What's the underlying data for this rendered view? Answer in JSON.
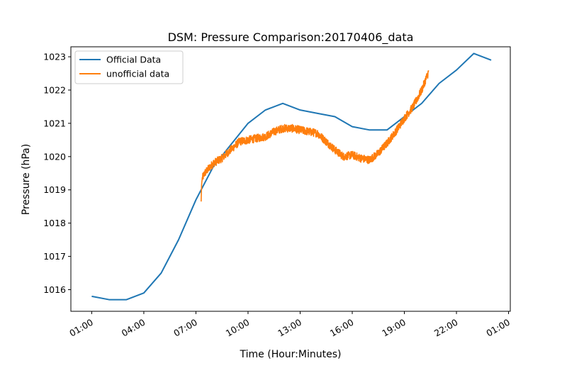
{
  "chart_data": {
    "type": "line",
    "title": "DSM: Pressure Comparison:20170406_data",
    "xlabel": "Time (Hour:Minutes)",
    "ylabel": "Pressure (hPa)",
    "x_tick_labels": [
      "01:00",
      "04:00",
      "07:00",
      "10:00",
      "13:00",
      "16:00",
      "19:00",
      "22:00",
      "01:00"
    ],
    "x_ticks_hours": [
      1,
      4,
      7,
      10,
      13,
      16,
      19,
      22,
      25
    ],
    "xlim_hours": [
      -0.2,
      25.1
    ],
    "y_ticks": [
      1016,
      1017,
      1018,
      1019,
      1020,
      1021,
      1022,
      1023
    ],
    "ylim": [
      1015.35,
      1023.3
    ],
    "grid": false,
    "legend_position": "top-left",
    "series": [
      {
        "name": "Official Data",
        "color": "#1f77b4",
        "x_hours": [
          1,
          2,
          3,
          4,
          5,
          6,
          7,
          8,
          9,
          10,
          11,
          12,
          13,
          14,
          15,
          16,
          17,
          18,
          19,
          20,
          21,
          22,
          23,
          24
        ],
        "values": [
          1015.8,
          1015.7,
          1015.7,
          1015.9,
          1016.5,
          1017.5,
          1018.7,
          1019.7,
          1020.35,
          1021.0,
          1021.4,
          1021.6,
          1021.4,
          1021.3,
          1021.2,
          1020.9,
          1020.8,
          1020.8,
          1021.2,
          1021.6,
          1022.2,
          1022.6,
          1023.1,
          1022.9
        ]
      },
      {
        "name": "unofficial data",
        "color": "#ff7f0e",
        "x_hours": [
          7.3,
          7.33,
          7.37,
          7.5,
          7.75,
          8.0,
          8.5,
          9.0,
          9.5,
          10.0,
          10.5,
          11.0,
          11.5,
          12.0,
          12.5,
          13.0,
          13.5,
          14.0,
          14.5,
          15.0,
          15.5,
          16.0,
          16.5,
          17.0,
          17.5,
          18.0,
          18.5,
          19.0,
          19.5,
          20.0,
          20.4
        ],
        "values": [
          1018.65,
          1019.2,
          1019.35,
          1019.5,
          1019.65,
          1019.8,
          1019.95,
          1020.2,
          1020.45,
          1020.5,
          1020.55,
          1020.6,
          1020.75,
          1020.85,
          1020.85,
          1020.8,
          1020.75,
          1020.7,
          1020.45,
          1020.2,
          1020.0,
          1020.05,
          1019.95,
          1019.9,
          1020.1,
          1020.4,
          1020.75,
          1021.15,
          1021.5,
          1022.0,
          1022.55
        ],
        "noise_amplitude": 0.12
      }
    ]
  }
}
